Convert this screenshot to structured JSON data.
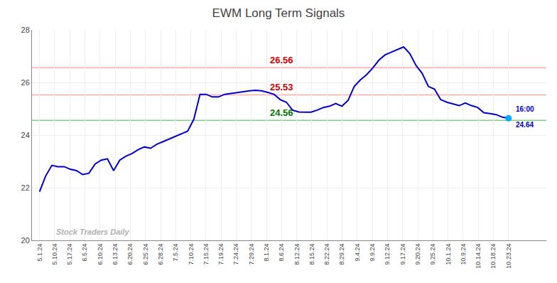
{
  "chart_data": {
    "type": "line",
    "title": "EWM Long Term Signals",
    "x": [
      0,
      0.4079,
      0.8158,
      1.2237,
      1.6316,
      2.0395,
      2.4474,
      2.8553,
      3.2632,
      3.6711,
      4.0789,
      4.4868,
      4.8947,
      5.3026,
      5.7105,
      6.1184,
      6.5263,
      6.9342,
      7.3421,
      7.75,
      8.1579,
      8.5658,
      8.9737,
      9.3816,
      9.7895,
      10.1974,
      10.6053,
      11.0132,
      11.4211,
      11.8289,
      12.2368,
      12.6447,
      13.0526,
      13.4605,
      13.8684,
      14.2763,
      14.6842,
      15.0921,
      15.5,
      15.9079,
      16.3158,
      16.7237,
      17.1316,
      17.5395,
      17.9474,
      18.3553,
      18.7632,
      19.1711,
      19.5789,
      19.9868,
      20.3947,
      20.8026,
      21.2105,
      21.6184,
      22.0263,
      22.4342,
      22.8421,
      23.25,
      23.6579,
      24.0658,
      24.4737,
      24.8816,
      25.2895,
      25.6974,
      26.1053,
      26.5132,
      26.9211,
      27.3289,
      27.7368,
      28.1447,
      28.5526,
      28.9605,
      29.3684,
      29.7763,
      30.1842,
      30.5921,
      31
    ],
    "values": [
      21.85,
      22.45,
      22.85,
      22.8,
      22.8,
      22.7,
      22.65,
      22.5,
      22.55,
      22.9,
      23.05,
      23.1,
      22.65,
      23.05,
      23.2,
      23.3,
      23.45,
      23.55,
      23.5,
      23.65,
      23.75,
      23.85,
      23.95,
      24.05,
      24.15,
      24.6,
      25.55,
      25.55,
      25.45,
      25.45,
      25.55,
      25.58,
      25.62,
      25.65,
      25.68,
      25.7,
      25.68,
      25.62,
      25.55,
      25.35,
      25.25,
      24.95,
      24.88,
      24.87,
      24.87,
      24.95,
      25.05,
      25.1,
      25.2,
      25.1,
      25.32,
      25.85,
      26.1,
      26.3,
      26.55,
      26.85,
      27.05,
      27.15,
      27.25,
      27.35,
      27.1,
      26.65,
      26.35,
      25.85,
      25.75,
      25.35,
      25.25,
      25.18,
      25.12,
      25.22,
      25.12,
      25.05,
      24.85,
      24.82,
      24.78,
      24.68,
      24.64
    ],
    "color": "#0000cc",
    "xlim": [
      -0.5,
      33.5
    ],
    "xticks": [
      {
        "value": 0,
        "label": "5.1.24"
      },
      {
        "value": 1,
        "label": "5.10.24"
      },
      {
        "value": 2,
        "label": "5.17.24"
      },
      {
        "value": 3,
        "label": "6.5.24"
      },
      {
        "value": 4,
        "label": "6.10.24"
      },
      {
        "value": 5,
        "label": "6.13.24"
      },
      {
        "value": 6,
        "label": "6.20.24"
      },
      {
        "value": 7,
        "label": "6.25.24"
      },
      {
        "value": 8,
        "label": "6.28.24"
      },
      {
        "value": 9,
        "label": "7.5.24"
      },
      {
        "value": 10,
        "label": "7.10.24"
      },
      {
        "value": 11,
        "label": "7.15.24"
      },
      {
        "value": 12,
        "label": "7.19.24"
      },
      {
        "value": 13,
        "label": "7.24.24"
      },
      {
        "value": 14,
        "label": "7.29.24"
      },
      {
        "value": 15,
        "label": "8.1.24"
      },
      {
        "value": 16,
        "label": "8.6.24"
      },
      {
        "value": 17,
        "label": "8.12.24"
      },
      {
        "value": 18,
        "label": "8.15.24"
      },
      {
        "value": 19,
        "label": "8.22.24"
      },
      {
        "value": 20,
        "label": "8.29.24"
      },
      {
        "value": 21,
        "label": "9.4.24"
      },
      {
        "value": 22,
        "label": "9.9.24"
      },
      {
        "value": 23,
        "label": "9.12.24"
      },
      {
        "value": 24,
        "label": "9.17.24"
      },
      {
        "value": 25,
        "label": "9.20.24"
      },
      {
        "value": 26,
        "label": "9.25.24"
      },
      {
        "value": 27,
        "label": "10.1.24"
      },
      {
        "value": 28,
        "label": "10.9.24"
      },
      {
        "value": 29,
        "label": "10.14.24"
      },
      {
        "value": 30,
        "label": "10.18.24"
      },
      {
        "value": 31,
        "label": "10.23.24"
      }
    ],
    "ylim": [
      20,
      28
    ],
    "yticks": [
      20,
      22,
      24,
      26,
      28
    ],
    "grid": true,
    "h_lines": [
      {
        "y": 26.56,
        "color": "#ffaaaa",
        "label_color": "#cc0000"
      },
      {
        "y": 25.53,
        "color": "#ffaaaa",
        "label_color": "#cc0000"
      },
      {
        "y": 24.56,
        "color": "#88cc88",
        "label_color": "#007700"
      }
    ],
    "last_point": {
      "label": "16:00",
      "value": 24.64,
      "color": "#0000cc",
      "marker_color": "#00aaff"
    },
    "annotations": [
      {
        "text": "Stock Traders Daily",
        "color": "#b0b0b0"
      }
    ]
  }
}
